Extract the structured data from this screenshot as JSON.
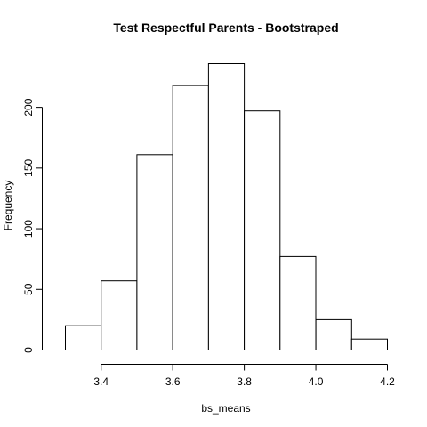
{
  "chart_data": {
    "type": "bar",
    "subtype": "histogram",
    "title": "Test Respectful Parents - Bootstraped",
    "xlabel": "bs_means",
    "ylabel": "Frequency",
    "bins": [
      {
        "start": 3.3,
        "end": 3.4,
        "count": 20
      },
      {
        "start": 3.4,
        "end": 3.5,
        "count": 57
      },
      {
        "start": 3.5,
        "end": 3.6,
        "count": 161
      },
      {
        "start": 3.6,
        "end": 3.7,
        "count": 218
      },
      {
        "start": 3.7,
        "end": 3.8,
        "count": 236
      },
      {
        "start": 3.8,
        "end": 3.9,
        "count": 197
      },
      {
        "start": 3.9,
        "end": 4.0,
        "count": 77
      },
      {
        "start": 4.0,
        "end": 4.1,
        "count": 25
      },
      {
        "start": 4.1,
        "end": 4.2,
        "count": 9
      }
    ],
    "xlim": [
      3.3,
      4.2
    ],
    "ylim": [
      0,
      236
    ],
    "x_ticks": [
      "3.4",
      "3.6",
      "3.8",
      "4.0",
      "4.2"
    ],
    "y_ticks": [
      "0",
      "50",
      "100",
      "150",
      "200"
    ],
    "grid": false,
    "legend": "none",
    "bar_fill": "#ffffff",
    "bar_stroke": "#000000"
  }
}
